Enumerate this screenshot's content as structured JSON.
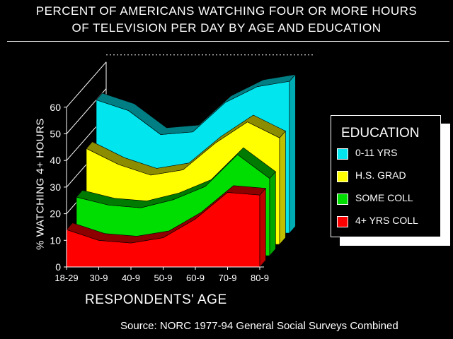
{
  "header": {
    "title_line1": "PERCENT OF AMERICANS WATCHING FOUR OR MORE HOURS",
    "title_line2": "OF TELEVISION PER DAY BY AGE AND EDUCATION"
  },
  "footer": {
    "source": "Source: NORC 1977-94 General Social Surveys Combined"
  },
  "legend": {
    "title": "EDUCATION",
    "items": [
      {
        "label": "0-11 YRS",
        "color": "#00e5ee"
      },
      {
        "label": "H.S. GRAD",
        "color": "#ffff00"
      },
      {
        "label": "SOME COLL",
        "color": "#00dd00"
      },
      {
        "label": "4+ YRS COLL",
        "color": "#ff0000"
      }
    ]
  },
  "chart_data": {
    "type": "area",
    "title": "PERCENT OF AMERICANS WATCHING FOUR OR MORE HOURS OF TELEVISION PER DAY BY AGE AND EDUCATION",
    "xlabel": "RESPONDENTS' AGE",
    "ylabel": "% WATCHING 4+ HOURS",
    "categories": [
      "18-29",
      "30-9",
      "40-9",
      "50-9",
      "60-9",
      "70-9",
      "80-9"
    ],
    "yticks": [
      "0",
      "10",
      "20",
      "30",
      "40",
      "50",
      "60"
    ],
    "ylim": [
      0,
      60
    ],
    "series": [
      {
        "name": "4+ YRS COLL",
        "color": "#ff0000",
        "values": [
          14,
          10,
          9,
          11,
          18,
          28,
          27
        ]
      },
      {
        "name": "SOME COLL",
        "color": "#00dd00",
        "values": [
          22,
          19,
          18,
          21,
          26,
          38,
          29
        ]
      },
      {
        "name": "H.S. GRAD",
        "color": "#ffff00",
        "values": [
          36,
          30,
          26,
          28,
          38,
          46,
          40
        ]
      },
      {
        "name": "0-11 YRS",
        "color": "#00e5ee",
        "values": [
          50,
          46,
          37,
          38,
          49,
          55,
          57
        ]
      }
    ],
    "style": "3d-stacked-ribbons",
    "legend_position": "right"
  }
}
